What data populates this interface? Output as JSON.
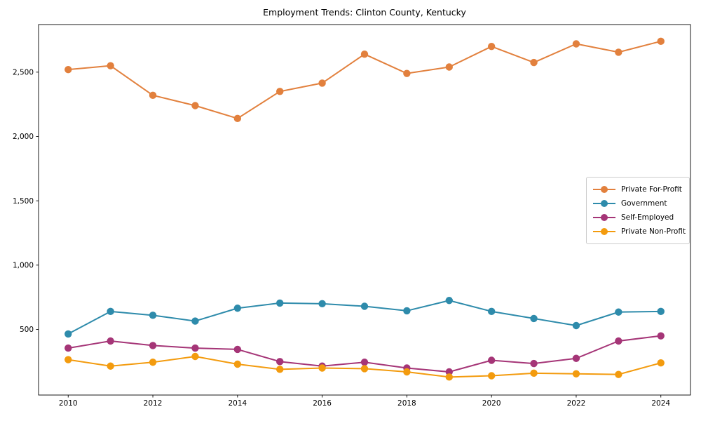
{
  "chart_data": {
    "type": "line",
    "title": "Employment Trends: Clinton County, Kentucky",
    "xlabel": "",
    "ylabel": "",
    "x": [
      2010,
      2011,
      2012,
      2013,
      2014,
      2015,
      2016,
      2017,
      2018,
      2019,
      2020,
      2021,
      2022,
      2023,
      2024
    ],
    "series": [
      {
        "name": "Private For-Profit",
        "color": "#e2803d",
        "values": [
          2520,
          2550,
          2320,
          2240,
          2140,
          2350,
          2415,
          2640,
          2490,
          2540,
          2700,
          2575,
          2720,
          2655,
          2740
        ]
      },
      {
        "name": "Government",
        "color": "#2e8bab",
        "values": [
          465,
          640,
          610,
          565,
          665,
          705,
          700,
          680,
          645,
          725,
          640,
          585,
          530,
          635,
          640
        ]
      },
      {
        "name": "Self-Employed",
        "color": "#a53577",
        "values": [
          355,
          410,
          375,
          355,
          345,
          250,
          215,
          245,
          200,
          170,
          260,
          235,
          275,
          410,
          450
        ]
      },
      {
        "name": "Private Non-Profit",
        "color": "#f39b0e",
        "values": [
          265,
          215,
          245,
          290,
          230,
          190,
          200,
          195,
          170,
          130,
          140,
          160,
          155,
          150,
          240
        ]
      }
    ],
    "xticks": [
      {
        "v": 2010,
        "label": "2010"
      },
      {
        "v": 2012,
        "label": "2012"
      },
      {
        "v": 2014,
        "label": "2014"
      },
      {
        "v": 2016,
        "label": "2016"
      },
      {
        "v": 2018,
        "label": "2018"
      },
      {
        "v": 2020,
        "label": "2020"
      },
      {
        "v": 2022,
        "label": "2022"
      },
      {
        "v": 2024,
        "label": "2024"
      }
    ],
    "yticks": [
      {
        "v": 500,
        "label": "500"
      },
      {
        "v": 1000,
        "label": "1,000"
      },
      {
        "v": 1500,
        "label": "1,500"
      },
      {
        "v": 2000,
        "label": "2,000"
      },
      {
        "v": 2500,
        "label": "2,500"
      }
    ],
    "xlim": [
      2009.3,
      2024.7
    ],
    "ylim": [
      -10,
      2870
    ],
    "grid": false,
    "legend_position": "center-right"
  }
}
